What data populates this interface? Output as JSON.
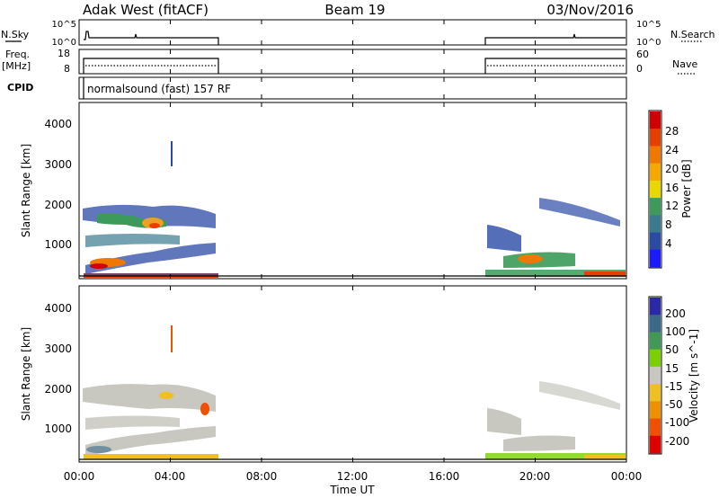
{
  "header": {
    "station": "Adak West (fitACF)",
    "beam": "Beam 19",
    "date": "03/Nov/2016"
  },
  "top_panels": {
    "nsky_label": "N.Sky",
    "nsky_ticks": [
      "10^5",
      "10^0"
    ],
    "nsearch_label": "N.Search",
    "nsearch_ticks": [
      "10^5",
      "10^0"
    ],
    "freq_label": "Freq.",
    "freq_unit": "[MHz]",
    "freq_ticks": [
      "18",
      "8"
    ],
    "nave_label": "Nave",
    "nave_ticks": [
      "60",
      "0"
    ],
    "cpid_label": "CPID",
    "cpid_text": "normalsound (fast) 157 RF"
  },
  "x_axis": {
    "title": "Time UT",
    "ticks": [
      "00:00",
      "04:00",
      "08:00",
      "12:00",
      "16:00",
      "20:00",
      "00:00"
    ]
  },
  "chart_data": [
    {
      "type": "heatmap",
      "title": "",
      "xlabel": "Time UT",
      "ylabel": "Slant Range [km]",
      "xlim": [
        0,
        24
      ],
      "ylim": [
        180,
        4600
      ],
      "yticks": [
        "1000",
        "2000",
        "3000",
        "4000"
      ],
      "colorbar": {
        "label": "Power [dB]",
        "ticks": [
          "4",
          "8",
          "12",
          "16",
          "20",
          "24",
          "28"
        ],
        "colors": [
          "#1a1aff",
          "#2b4aa6",
          "#3a7a8f",
          "#3c9a5a",
          "#e8d800",
          "#f5a800",
          "#f07800",
          "#e64000",
          "#d00000"
        ]
      },
      "data_gaps_hours": [
        [
          6,
          18
        ]
      ],
      "regions": [
        {
          "time_range": [
            0.1,
            5.9
          ],
          "range_km": [
            1300,
            1700
          ],
          "level": "4-12"
        },
        {
          "time_range": [
            0.8,
            3.5
          ],
          "range_km": [
            1300,
            1500
          ],
          "level": "16-24"
        },
        {
          "time_range": [
            0.5,
            2.5
          ],
          "range_km": [
            300,
            700
          ],
          "level": "20-28"
        },
        {
          "time_range": [
            18.0,
            23.9
          ],
          "range_km": [
            200,
            1200
          ],
          "level": "4-16"
        },
        {
          "time_range": [
            19.5,
            21.0
          ],
          "range_km": [
            500,
            700
          ],
          "level": "16-24"
        }
      ]
    },
    {
      "type": "heatmap",
      "title": "",
      "xlabel": "Time UT",
      "ylabel": "Slant Range [km]",
      "xlim": [
        0,
        24
      ],
      "ylim": [
        180,
        4600
      ],
      "yticks": [
        "1000",
        "2000",
        "3000",
        "4000"
      ],
      "colorbar": {
        "label": "Velocity [m s^-1]",
        "ticks": [
          "200",
          "100",
          "50",
          "15",
          "-15",
          "-50",
          "-100",
          "-200"
        ],
        "colors": [
          "#2a2aa8",
          "#3a6a8a",
          "#3f9a55",
          "#7ad000",
          "#c8c8c0",
          "#f0c020",
          "#f09000",
          "#f05000",
          "#e00000"
        ]
      },
      "data_gaps_hours": [
        [
          6,
          18
        ]
      ],
      "regions": [
        {
          "time_range": [
            0.2,
            5.0
          ],
          "range_km": [
            500,
            2000
          ],
          "level": "-15 to 15"
        },
        {
          "time_range": [
            0.0,
            6.0
          ],
          "range_km": [
            180,
            350
          ],
          "level": "-50 to -15"
        },
        {
          "time_range": [
            5.0,
            6.0
          ],
          "range_km": [
            1300,
            1800
          ],
          "level": "-100 to -200"
        },
        {
          "time_range": [
            18.0,
            23.9
          ],
          "range_km": [
            200,
            1200
          ],
          "level": "-15 to 15"
        }
      ]
    }
  ]
}
